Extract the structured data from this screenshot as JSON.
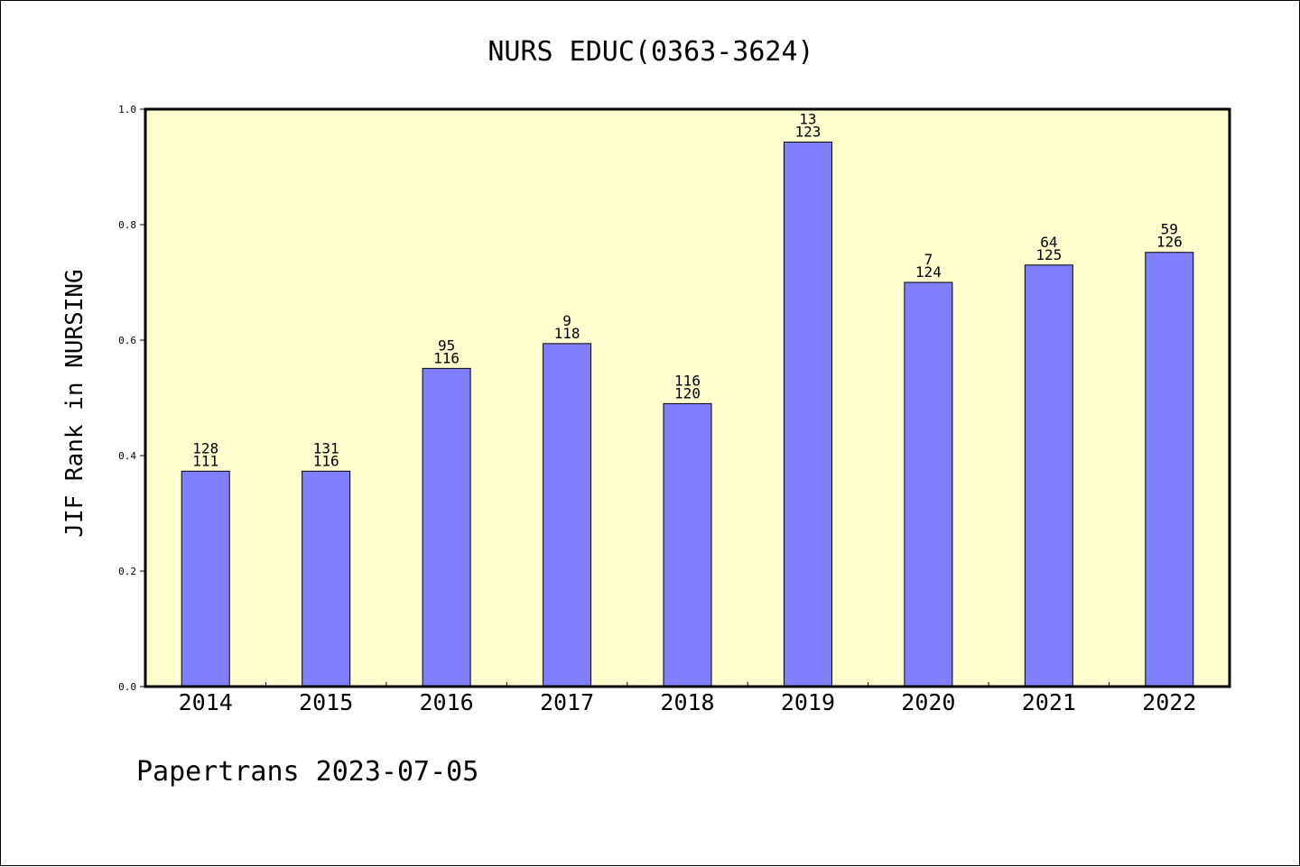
{
  "chart_data": {
    "type": "bar",
    "title": "NURS EDUC(0363-3624)",
    "xlabel": "",
    "ylabel": "JIF Rank in NURSING",
    "ylim": [
      0,
      1.0
    ],
    "yticks": [
      "0.0",
      "0.2",
      "0.4",
      "0.6",
      "0.8",
      "1.0"
    ],
    "categories": [
      "2014",
      "2015",
      "2016",
      "2017",
      "2018",
      "2019",
      "2020",
      "2021",
      "2022"
    ],
    "values": [
      0.373,
      0.373,
      0.551,
      0.594,
      0.49,
      0.943,
      0.7,
      0.73,
      0.752
    ],
    "labels_top": [
      "128",
      "131",
      "95",
      "9",
      "116",
      "13",
      "7",
      "64",
      "59"
    ],
    "labels_bottom": [
      "111",
      "116",
      "116",
      "118",
      "120",
      "123",
      "124",
      "125",
      "126"
    ],
    "grid": false,
    "colors": {
      "bar": "#8080ff",
      "plot_background": "#ffffd0",
      "axis": "#000000"
    }
  },
  "footer": {
    "text": "Papertrans 2023-07-05"
  }
}
